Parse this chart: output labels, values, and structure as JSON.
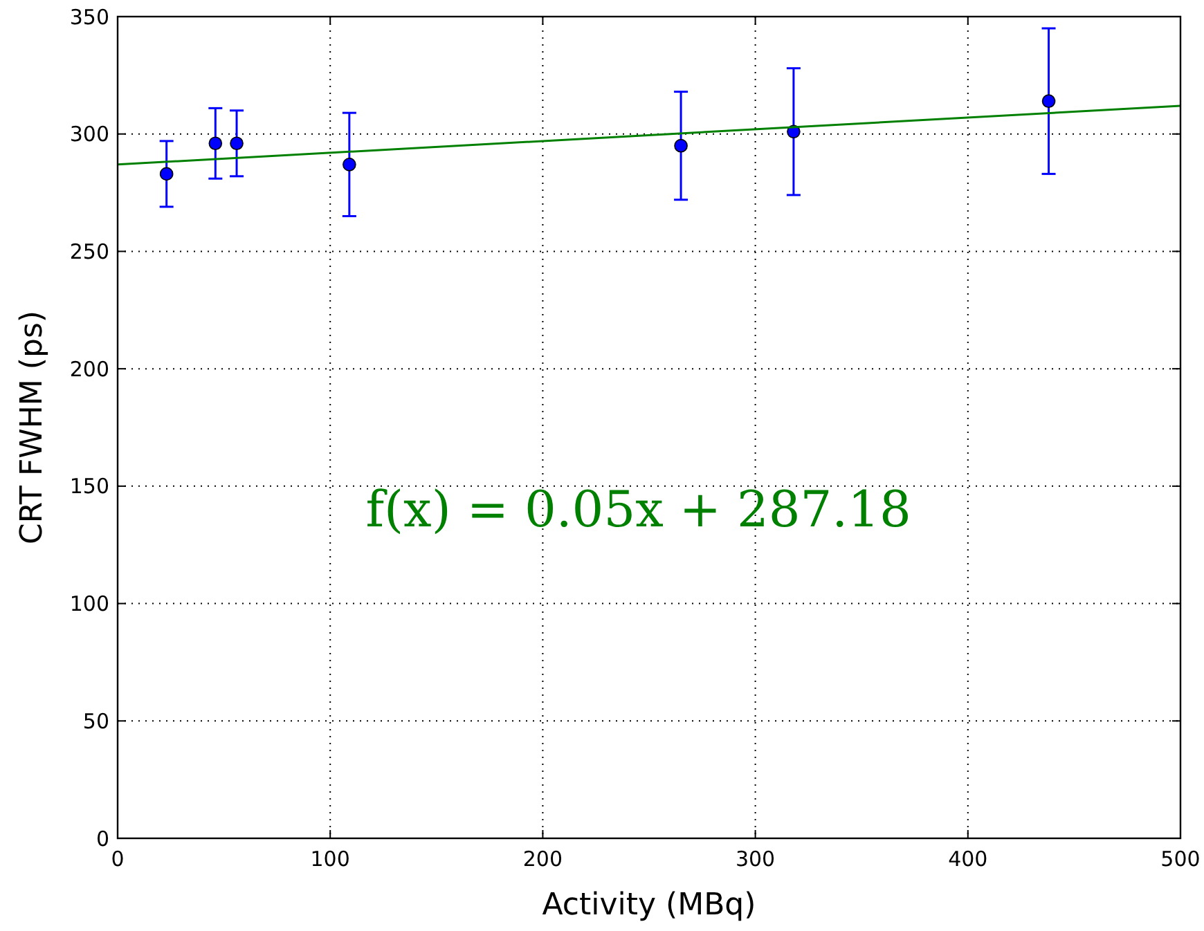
{
  "chart_data": {
    "type": "scatter",
    "xlabel": "Activity (MBq)",
    "ylabel": "CRT FWHM (ps)",
    "xlim": [
      0,
      500
    ],
    "ylim": [
      0,
      350
    ],
    "xticks": [
      0,
      100,
      200,
      300,
      400,
      500
    ],
    "yticks": [
      0,
      50,
      100,
      150,
      200,
      250,
      300,
      350
    ],
    "grid": true,
    "marker": "circle",
    "series": [
      {
        "color": "#0000ff",
        "x": [
          23,
          46,
          56,
          109,
          265,
          318,
          438
        ],
        "values": [
          283,
          296,
          296,
          287,
          295,
          301,
          314
        ],
        "errors": [
          14,
          15,
          14,
          22,
          23,
          27,
          31
        ]
      },
      {
        "type": "line",
        "color": "#008000",
        "x": [
          0,
          500
        ],
        "values": [
          287,
          312
        ],
        "marker": "none"
      }
    ],
    "annotations": [
      "f(x) = 0.05x + 287.18"
    ]
  }
}
